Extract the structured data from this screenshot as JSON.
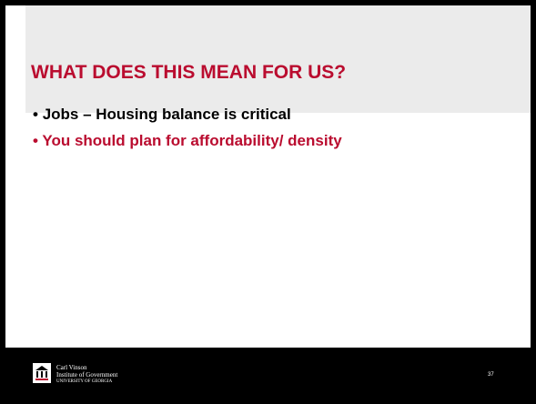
{
  "title": "WHAT DOES THIS MEAN FOR US?",
  "bullets": [
    "Jobs – Housing balance is critical",
    "You should plan for affordability/ density"
  ],
  "footer": {
    "logo": [
      "Carl Vinson",
      "Institute of Government",
      "UNIVERSITY OF GEORGIA"
    ],
    "page": "37"
  }
}
